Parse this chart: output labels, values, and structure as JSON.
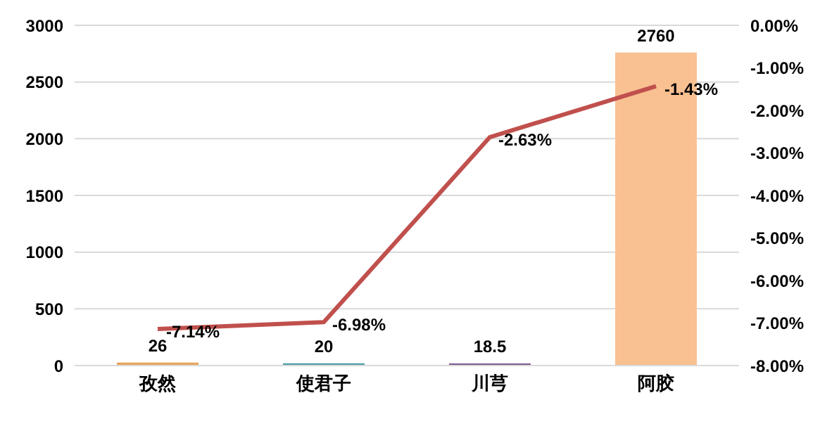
{
  "chart_data": {
    "type": "bar",
    "categories": [
      "孜然",
      "使君子",
      "川芎",
      "阿胶"
    ],
    "series": [
      {
        "colors": [
          "#e8a35c",
          "#4f9fa6",
          "#7b5c91",
          "#f9c092"
        ],
        "values": [
          26,
          20,
          18.5,
          2760
        ],
        "value_labels": [
          "26",
          "20",
          "18.5",
          "2760"
        ]
      },
      {
        "type": "line",
        "axis": "y2",
        "color": "#c0504d",
        "values": [
          -7.14,
          -6.98,
          -2.63,
          -1.43
        ],
        "value_labels": [
          "-7.14%",
          "-6.98%",
          "-2.63%",
          "-1.43%"
        ]
      }
    ],
    "ylim": [
      0,
      3000
    ],
    "yticks": [
      0,
      500,
      1000,
      1500,
      2000,
      2500,
      3000
    ],
    "y2lim": [
      -8,
      0
    ],
    "y2ticks": [
      {
        "value": -8,
        "label": "-8.00%"
      },
      {
        "value": -7,
        "label": "-7.00%"
      },
      {
        "value": -6,
        "label": "-6.00%"
      },
      {
        "value": -5,
        "label": "-5.00%"
      },
      {
        "value": -4,
        "label": "-4.00%"
      },
      {
        "value": -3,
        "label": "-3.00%"
      },
      {
        "value": -2,
        "label": "-2.00%"
      },
      {
        "value": -1,
        "label": "-1.00%"
      },
      {
        "value": 0,
        "label": "0.00%"
      }
    ],
    "grid": "y",
    "legend": false,
    "marker": "none",
    "line_style": "solid"
  }
}
